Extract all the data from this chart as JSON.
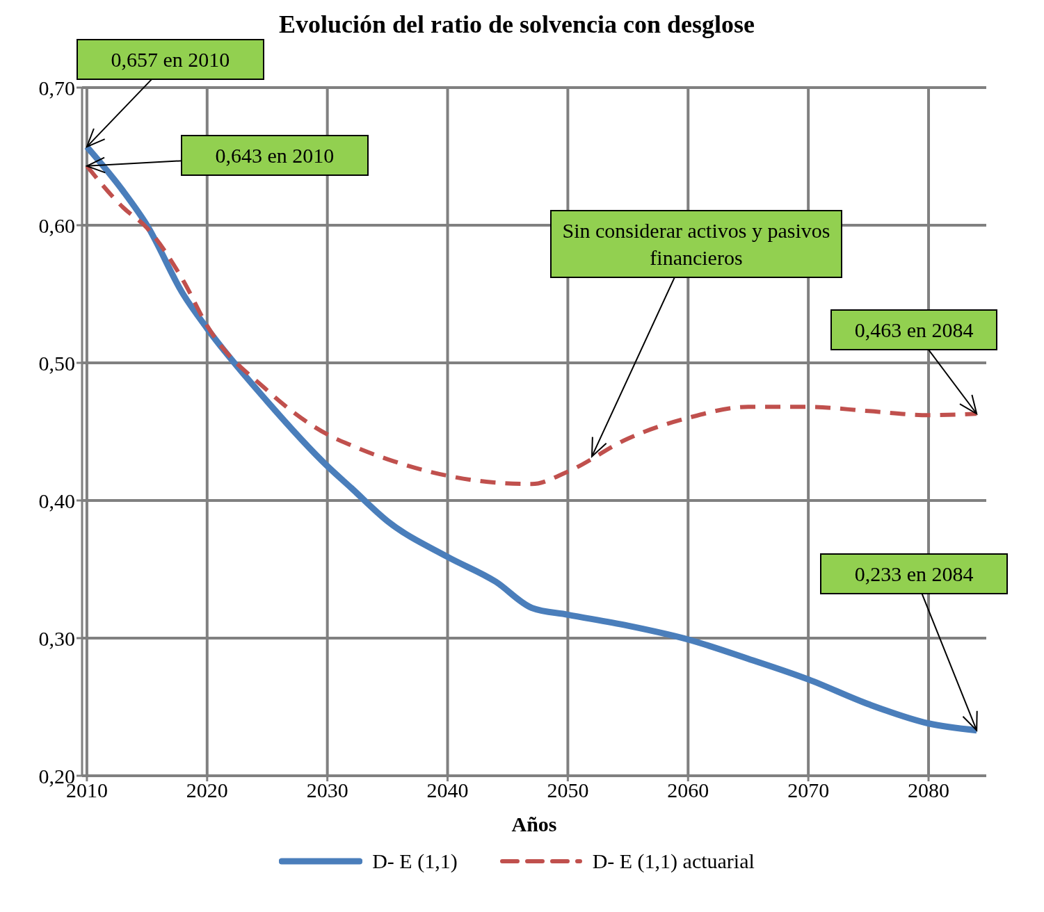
{
  "chart_data": {
    "type": "line",
    "title": "Evolución del ratio de solvencia con desglose",
    "xlabel": "Años",
    "x": [
      2010,
      2013,
      2015,
      2018,
      2020,
      2025,
      2030,
      2032,
      2035,
      2040,
      2044,
      2047,
      2050,
      2055,
      2060,
      2065,
      2070,
      2075,
      2080,
      2084
    ],
    "series": [
      {
        "name": "D- E (1,1)",
        "color": "#4a7ebb",
        "line_style": "solid",
        "values": [
          0.657,
          0.625,
          0.6,
          0.55,
          0.525,
          0.472,
          0.425,
          0.409,
          0.385,
          0.359,
          0.341,
          0.322,
          0.317,
          0.309,
          0.299,
          0.285,
          0.27,
          0.252,
          0.238,
          0.233
        ]
      },
      {
        "name": "D-  E (1,1) actuarial",
        "color": "#c0504d",
        "line_style": "dashed",
        "values": [
          0.643,
          0.613,
          0.598,
          0.56,
          0.527,
          0.48,
          0.448,
          0.44,
          0.43,
          0.418,
          0.413,
          0.412,
          0.421,
          0.445,
          0.46,
          0.468,
          0.468,
          0.465,
          0.462,
          0.463
        ]
      }
    ],
    "xlim": [
      2009.6,
      2084.8
    ],
    "xticks": [
      2010,
      2020,
      2030,
      2040,
      2050,
      2060,
      2070,
      2080
    ],
    "ylim": [
      0.2,
      0.7
    ],
    "yticks": [
      {
        "value": 0.2,
        "label": "0,20"
      },
      {
        "value": 0.3,
        "label": "0,30"
      },
      {
        "value": 0.4,
        "label": "0,40"
      },
      {
        "value": 0.5,
        "label": "0,50"
      },
      {
        "value": 0.6,
        "label": "0,60"
      },
      {
        "value": 0.7,
        "label": "0,70"
      }
    ],
    "grid": true,
    "legend": "bottom",
    "annotations": [
      {
        "text": "0,657 en 2010",
        "x": 2010,
        "y": 0.657
      },
      {
        "text": "0,643 en 2010",
        "x": 2010,
        "y": 0.643
      },
      {
        "text": "Sin considerar activos y pasivos financieros",
        "x": 2052,
        "y": 0.432
      },
      {
        "text": "0,463 en 2084",
        "x": 2084,
        "y": 0.463
      },
      {
        "text": "0,233 en 2084",
        "x": 2084,
        "y": 0.233
      }
    ]
  }
}
